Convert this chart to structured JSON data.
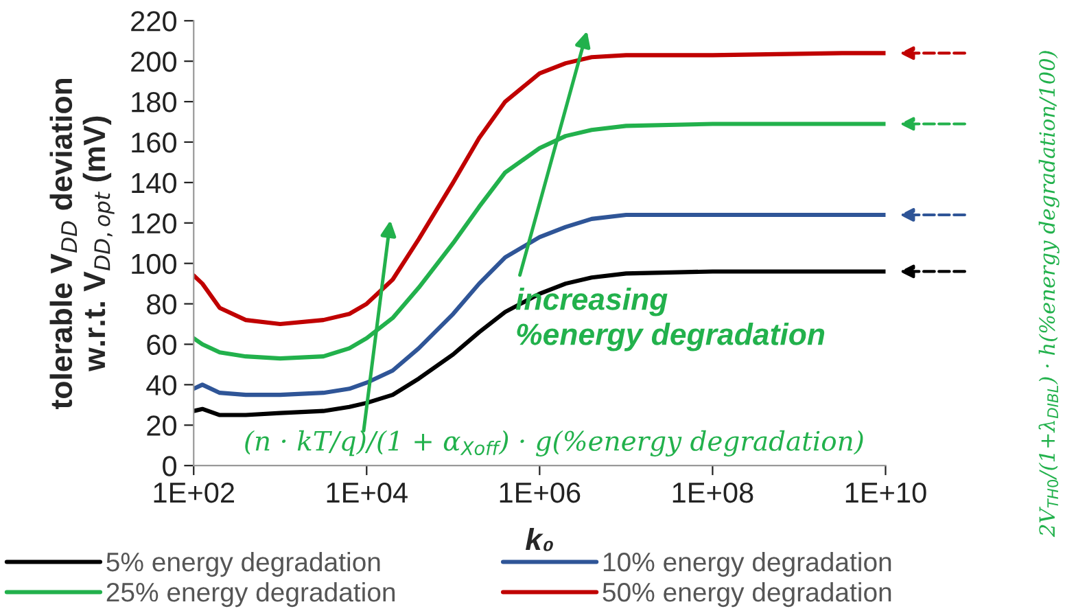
{
  "chart_data": {
    "type": "line",
    "xlabel": "k₀",
    "ylabel": "tolerable V$_{DD}$ deviation\nw.r.t. V$_{DD,opt}$ (mV)",
    "log": "x",
    "xlim": [
      100,
      10000000000
    ],
    "ylim": [
      0,
      220
    ],
    "xticks": [
      {
        "value": 100,
        "label": "1E+02"
      },
      {
        "value": 10000,
        "label": "1E+04"
      },
      {
        "value": 1000000,
        "label": "1E+06"
      },
      {
        "value": 100000000,
        "label": "1E+08"
      },
      {
        "value": 10000000000,
        "label": "1E+10"
      }
    ],
    "yticks": [
      0,
      20,
      40,
      60,
      80,
      100,
      120,
      140,
      160,
      180,
      200,
      220
    ],
    "x": [
      100,
      126,
      200,
      400,
      1000,
      3160,
      6300,
      10000,
      20000,
      40000,
      100000,
      200000,
      400000,
      1000000,
      2000000,
      4000000,
      10000000,
      100000000,
      3160000000,
      10000000000
    ],
    "series": [
      {
        "name": "5% energy degradation",
        "color": "#000000",
        "values": [
          27,
          28,
          25,
          25,
          26,
          27,
          29,
          31,
          35,
          43,
          55,
          66,
          76,
          85,
          90,
          93,
          95,
          96,
          96,
          96
        ]
      },
      {
        "name": "10% energy degradation",
        "color": "#2f5597",
        "values": [
          38,
          40,
          36,
          35,
          35,
          36,
          38,
          41,
          47,
          58,
          75,
          90,
          103,
          113,
          118,
          122,
          124,
          124,
          124,
          124
        ]
      },
      {
        "name": "25% energy degradation",
        "color": "#22b14c",
        "values": [
          63,
          60,
          56,
          54,
          53,
          54,
          58,
          63,
          73,
          88,
          110,
          128,
          145,
          157,
          163,
          166,
          168,
          169,
          169,
          169
        ]
      },
      {
        "name": "50% energy degradation",
        "color": "#c00000",
        "values": [
          94,
          90,
          78,
          72,
          70,
          72,
          75,
          80,
          92,
          112,
          140,
          162,
          180,
          194,
          199,
          202,
          203,
          203,
          204,
          204
        ]
      }
    ],
    "annotations": [
      "increasing\n%energy degradation",
      "(n · kT/q)/(1 + α$_{Xoff}$) · g(%energy degradation)",
      "2V$_{TH0}$/(1+λ$_{DIBL}$) · h(%energy degradation/100)"
    ],
    "legend": "bottom",
    "grid": false,
    "marker": "none",
    "line_style": "solid"
  }
}
